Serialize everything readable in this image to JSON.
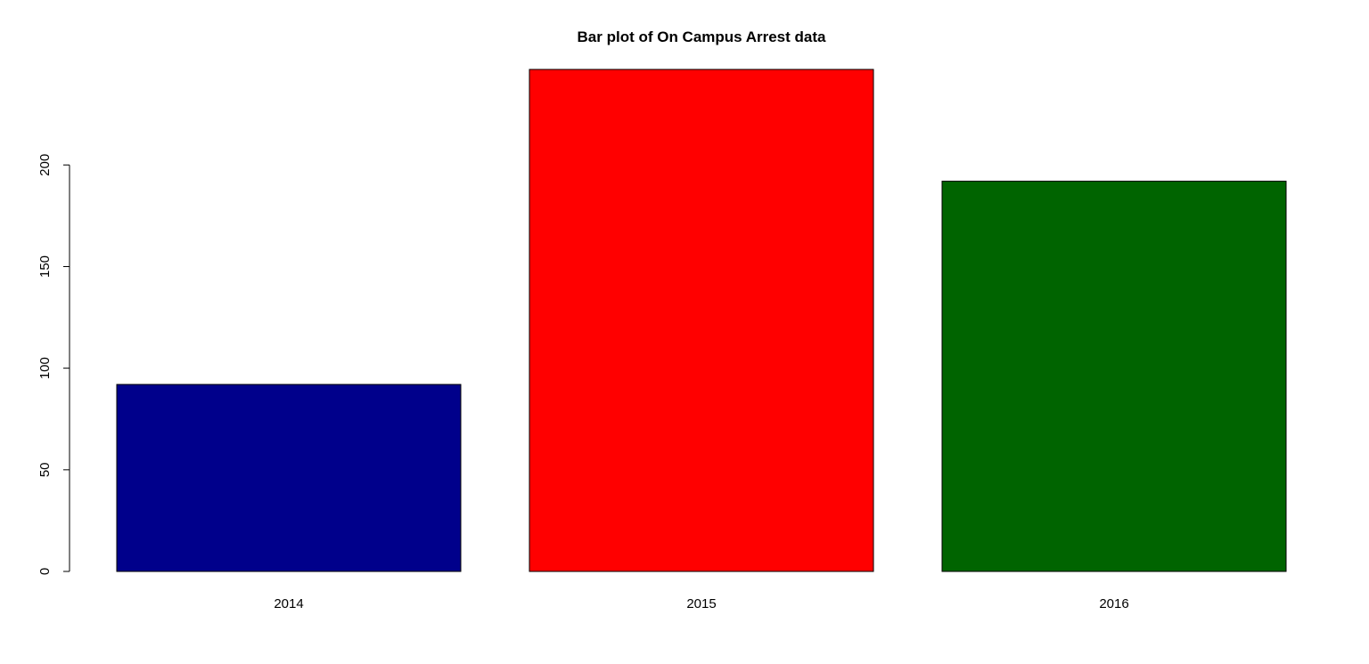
{
  "chart_data": {
    "type": "bar",
    "title": "Bar plot of On Campus Arrest data",
    "xlabel": "",
    "ylabel": "",
    "categories": [
      "2014",
      "2015",
      "2016"
    ],
    "values": [
      92,
      247,
      192
    ],
    "colors": [
      "#00008b",
      "#ff0000",
      "#006400"
    ],
    "yticks": [
      0,
      50,
      100,
      150,
      200
    ],
    "ytick_labels": [
      "0",
      "50",
      "100",
      "150",
      "200"
    ],
    "ylim": [
      0,
      247
    ],
    "grid": false,
    "legend": "none"
  }
}
